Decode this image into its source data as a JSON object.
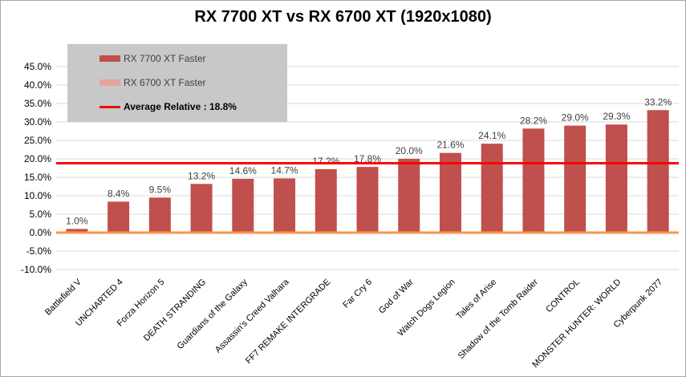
{
  "chart_data": {
    "type": "bar",
    "title": "RX 7700 XT vs RX 6700 XT (1920x1080)",
    "categories": [
      "Battlefield V",
      "UNCHARTED 4",
      "Forza Horizon 5",
      "DEATH STRANDING",
      "Guardians of the Galaxy",
      "Assassin's Creed Valhara",
      "FF7 REMAKE INTERGRADE",
      "Far Cry 6",
      "God of War",
      "Watch Dogs Legion",
      "Tales of Arise",
      "Shadow of the Tomb Raider",
      "CONTROL",
      "MONSTER HUNTER: WORLD",
      "Cyberpunk 2077"
    ],
    "series": [
      {
        "name": "RX 7700 XT Faster",
        "values": [
          1.0,
          8.4,
          9.5,
          13.2,
          14.6,
          14.7,
          17.2,
          17.8,
          20.0,
          21.6,
          24.1,
          28.2,
          29.0,
          29.3,
          33.2
        ],
        "color": "#c0504d"
      }
    ],
    "data_labels": [
      "1.0%",
      "8.4%",
      "9.5%",
      "13.2%",
      "14.6%",
      "14.7%",
      "17.2%",
      "17.8%",
      "20.0%",
      "21.6%",
      "24.1%",
      "28.2%",
      "29.0%",
      "29.3%",
      "33.2%"
    ],
    "ylim": [
      -10,
      45
    ],
    "ytick_values": [
      45,
      40,
      35,
      30,
      25,
      20,
      15,
      10,
      5,
      0,
      -5,
      -10
    ],
    "ytick_labels": [
      "45.0%",
      "40.0%",
      "35.0%",
      "30.0%",
      "25.0%",
      "20.0%",
      "15.0%",
      "10.0%",
      "5.0%",
      "0.0%",
      "-5.0%",
      "-10.0%"
    ],
    "average_line": {
      "value": 18.8,
      "color": "#ff0000"
    },
    "zero_line_color": "#f79646",
    "grid": true,
    "legend_position": "top-left",
    "legend": [
      {
        "label": "RX 7700 XT Faster",
        "kind": "box",
        "color": "#c0504d"
      },
      {
        "label": "RX 6700 XT Faster",
        "kind": "box",
        "color": "#e6a3a1"
      },
      {
        "label": "Average Relative : 18.8%",
        "kind": "line",
        "color": "#ff0000",
        "bold": true
      }
    ]
  }
}
